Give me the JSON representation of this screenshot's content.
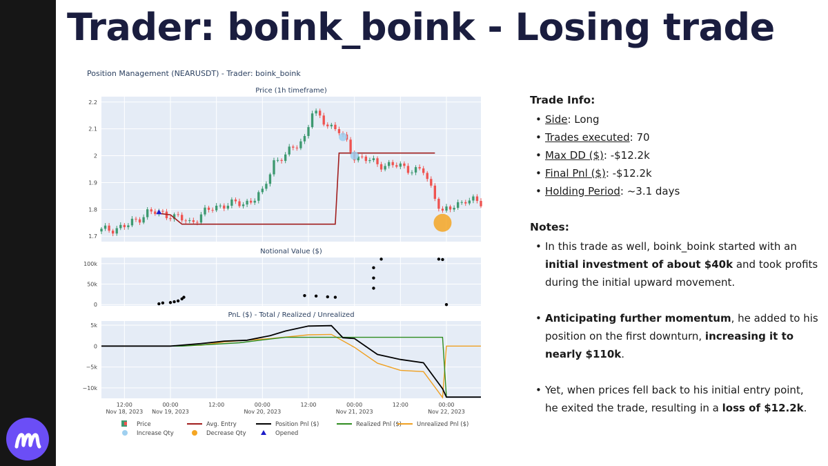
{
  "slide": {
    "title": "Trader: boink_boink - Losing trade"
  },
  "brand": {
    "band_color": "#161616",
    "logo_color": "#6b4ef6"
  },
  "trade_info": {
    "heading": "Trade Info:",
    "items": [
      {
        "label": "Side",
        "value": ": Long"
      },
      {
        "label": "Trades executed",
        "value": ": 70"
      },
      {
        "label": "Max DD ($)",
        "value": ": -$12.2k"
      },
      {
        "label": "Final Pnl ($)",
        "value": ": -$12.2k"
      },
      {
        "label": "Holding Period",
        "value": ": ~3.1 days"
      }
    ]
  },
  "notes": {
    "heading": "Notes:",
    "items": [
      {
        "p1": "In this trade as well, boink_boink started with an ",
        "b1": "initial investment of about $40k",
        "p2": " and took profits during the initial upward movement.",
        "b2": "",
        "p3": ""
      },
      {
        "p1": "",
        "b1": "Anticipating further momentum",
        "p2": ", he added to his position on the first downturn, ",
        "b2": "increasing it to nearly $110k",
        "p3": "."
      },
      {
        "p1": "Yet, when prices fell back to his initial entry point, he exited the trade, resulting in a ",
        "b1": "loss of $12.2k",
        "p2": ".",
        "b2": "",
        "p3": ""
      }
    ]
  },
  "chart_data": {
    "type": "line",
    "title": "Position Management (NEARUSDT) - Trader: boink_boink",
    "colors": {
      "up": "#3d9970",
      "down": "#ef5350",
      "avg_entry": "#a01c1c",
      "position_pnl": "#000000",
      "realized_pnl": "#2e8b1f",
      "unrealized_pnl": "#f0a020",
      "increase": "#9fd0f0",
      "decrease": "#f5a623",
      "opened": "#1c1cc8",
      "plot_bg": "#e5ecf6"
    },
    "x_ticks": [
      {
        "x": "2023-11-18T12:00",
        "line1": "12:00",
        "line2": "Nov 18, 2023"
      },
      {
        "x": "2023-11-19T00:00",
        "line1": "00:00",
        "line2": "Nov 19, 2023"
      },
      {
        "x": "2023-11-19T12:00",
        "line1": "12:00",
        "line2": ""
      },
      {
        "x": "2023-11-20T00:00",
        "line1": "00:00",
        "line2": "Nov 20, 2023"
      },
      {
        "x": "2023-11-20T12:00",
        "line1": "12:00",
        "line2": ""
      },
      {
        "x": "2023-11-21T00:00",
        "line1": "00:00",
        "line2": "Nov 21, 2023"
      },
      {
        "x": "2023-11-21T12:00",
        "line1": "12:00",
        "line2": ""
      },
      {
        "x": "2023-11-22T00:00",
        "line1": "00:00",
        "line2": "Nov 22, 2023"
      }
    ],
    "xlim": [
      "2023-11-18T06:00",
      "2023-11-22T09:00"
    ],
    "price": {
      "subtitle": "Price (1h timeframe)",
      "ylim": [
        1.68,
        2.22
      ],
      "y_ticks": [
        1.7,
        1.8,
        1.9,
        2,
        2.1,
        2.2
      ],
      "y_tick_labels": [
        "1.7",
        "1.8",
        "1.9",
        "2",
        "2.1",
        "2.2"
      ],
      "candle_anchors": [
        [
          "2023-11-18T06:00",
          1.72
        ],
        [
          "2023-11-18T13:00",
          1.74
        ],
        [
          "2023-11-18T18:00",
          1.79
        ],
        [
          "2023-11-19T00:00",
          1.78
        ],
        [
          "2023-11-19T05:00",
          1.75
        ],
        [
          "2023-11-19T09:00",
          1.79
        ],
        [
          "2023-11-19T14:00",
          1.82
        ],
        [
          "2023-11-19T19:00",
          1.82
        ],
        [
          "2023-11-20T00:00",
          1.86
        ],
        [
          "2023-11-20T03:00",
          1.98
        ],
        [
          "2023-11-20T06:00",
          2.0
        ],
        [
          "2023-11-20T11:00",
          2.07
        ],
        [
          "2023-11-20T13:00",
          2.16
        ],
        [
          "2023-11-20T16:00",
          2.13
        ],
        [
          "2023-11-20T20:00",
          2.09
        ],
        [
          "2023-11-21T00:00",
          2.0
        ],
        [
          "2023-11-21T06:00",
          1.97
        ],
        [
          "2023-11-21T12:00",
          1.96
        ],
        [
          "2023-11-21T18:00",
          1.94
        ],
        [
          "2023-11-21T23:00",
          1.79
        ],
        [
          "2023-11-22T01:00",
          1.8
        ],
        [
          "2023-11-22T05:00",
          1.84
        ],
        [
          "2023-11-22T09:00",
          1.82
        ]
      ],
      "avg_entry": {
        "name": "Avg. Entry",
        "points": [
          [
            "2023-11-18T21:00",
            1.785
          ],
          [
            "2023-11-19T00:00",
            1.78
          ],
          [
            "2023-11-19T03:00",
            1.745
          ],
          [
            "2023-11-20T19:00",
            1.745
          ],
          [
            "2023-11-20T20:00",
            2.01
          ],
          [
            "2023-11-21T21:00",
            2.01
          ]
        ]
      },
      "opened": {
        "name": "Opened",
        "x": "2023-11-18T21:00",
        "y": 1.79
      },
      "increase_points": [
        [
          "2023-11-20T21:00",
          2.07
        ],
        [
          "2023-11-21T00:00",
          2.0
        ]
      ],
      "decrease_points": [
        [
          "2023-11-21T23:00",
          1.75
        ]
      ]
    },
    "notional": {
      "subtitle": "Notional Value ($)",
      "ylim": [
        -3000,
        115000
      ],
      "y_ticks": [
        0,
        50000,
        100000
      ],
      "y_tick_labels": [
        "0",
        "50k",
        "100k"
      ],
      "points": [
        [
          "2023-11-18T21:00",
          2000
        ],
        [
          "2023-11-18T22:00",
          4000
        ],
        [
          "2023-11-19T00:00",
          5000
        ],
        [
          "2023-11-19T01:00",
          7000
        ],
        [
          "2023-11-19T02:00",
          9000
        ],
        [
          "2023-11-19T03:00",
          14000
        ],
        [
          "2023-11-19T03:30",
          18000
        ],
        [
          "2023-11-20T11:00",
          22000
        ],
        [
          "2023-11-20T14:00",
          21000
        ],
        [
          "2023-11-20T17:00",
          19000
        ],
        [
          "2023-11-20T19:00",
          18000
        ],
        [
          "2023-11-21T05:00",
          40000
        ],
        [
          "2023-11-21T05:00",
          65000
        ],
        [
          "2023-11-21T05:00",
          90000
        ],
        [
          "2023-11-21T07:00",
          111000
        ],
        [
          "2023-11-21T22:00",
          111000
        ],
        [
          "2023-11-21T23:00",
          110000
        ],
        [
          "2023-11-22T00:00",
          0
        ]
      ]
    },
    "pnl": {
      "subtitle": "PnL ($) - Total / Realized / Unrealized",
      "ylim": [
        -12500,
        6000
      ],
      "y_ticks": [
        -10000,
        -5000,
        0,
        5000
      ],
      "y_tick_labels": [
        "−10k",
        "−5k",
        "0",
        "5k"
      ],
      "series": [
        {
          "name": "Position Pnl ($)",
          "points": [
            [
              "2023-11-18T06:00",
              0
            ],
            [
              "2023-11-19T00:00",
              0
            ],
            [
              "2023-11-19T08:00",
              600
            ],
            [
              "2023-11-19T14:00",
              1200
            ],
            [
              "2023-11-19T20:00",
              1400
            ],
            [
              "2023-11-20T02:00",
              2500
            ],
            [
              "2023-11-20T06:00",
              3600
            ],
            [
              "2023-11-20T12:00",
              4800
            ],
            [
              "2023-11-20T18:00",
              4900
            ],
            [
              "2023-11-20T21:00",
              2000
            ],
            [
              "2023-11-21T00:00",
              1800
            ],
            [
              "2023-11-21T06:00",
              -2000
            ],
            [
              "2023-11-21T12:00",
              -3200
            ],
            [
              "2023-11-21T18:00",
              -4000
            ],
            [
              "2023-11-21T23:00",
              -10200
            ],
            [
              "2023-11-22T00:00",
              -12200
            ],
            [
              "2023-11-22T09:00",
              -12200
            ]
          ]
        },
        {
          "name": "Realized Pnl ($)",
          "points": [
            [
              "2023-11-18T06:00",
              0
            ],
            [
              "2023-11-19T03:00",
              0
            ],
            [
              "2023-11-19T18:00",
              800
            ],
            [
              "2023-11-20T03:00",
              1800
            ],
            [
              "2023-11-20T06:00",
              2100
            ],
            [
              "2023-11-21T23:00",
              2100
            ],
            [
              "2023-11-22T00:00",
              -12200
            ],
            [
              "2023-11-22T09:00",
              -12200
            ]
          ]
        },
        {
          "name": "Unrealized Pnl ($)",
          "points": [
            [
              "2023-11-18T06:00",
              0
            ],
            [
              "2023-11-19T00:00",
              0
            ],
            [
              "2023-11-19T08:00",
              200
            ],
            [
              "2023-11-19T14:00",
              1000
            ],
            [
              "2023-11-20T02:00",
              1800
            ],
            [
              "2023-11-20T12:00",
              2700
            ],
            [
              "2023-11-20T18:00",
              2800
            ],
            [
              "2023-11-21T00:00",
              -300
            ],
            [
              "2023-11-21T06:00",
              -4100
            ],
            [
              "2023-11-21T12:00",
              -5800
            ],
            [
              "2023-11-21T18:00",
              -6100
            ],
            [
              "2023-11-21T23:00",
              -12300
            ],
            [
              "2023-11-22T00:00",
              0
            ],
            [
              "2023-11-22T09:00",
              0
            ]
          ]
        }
      ]
    },
    "legend": {
      "placement": "bottom",
      "items": [
        {
          "label": "Price",
          "kind": "candle"
        },
        {
          "label": "Avg. Entry",
          "kind": "line",
          "color": "#a01c1c"
        },
        {
          "label": "Position Pnl ($)",
          "kind": "line",
          "color": "#000000"
        },
        {
          "label": "Realized Pnl ($)",
          "kind": "line",
          "color": "#2e8b1f"
        },
        {
          "label": "Unrealized Pnl ($)",
          "kind": "line",
          "color": "#f0a020"
        },
        {
          "label": "Increase Qty",
          "kind": "dot",
          "color": "#9fd0f0"
        },
        {
          "label": "Decrease Qty",
          "kind": "dot",
          "color": "#f5a623"
        },
        {
          "label": "Opened",
          "kind": "tri",
          "color": "#1c1cc8"
        }
      ]
    }
  }
}
